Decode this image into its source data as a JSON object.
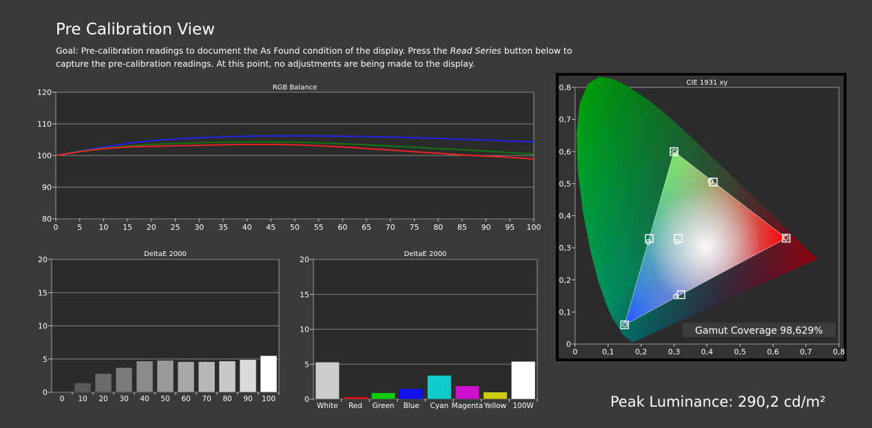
{
  "header": {
    "title": "Pre Calibration View",
    "goal_prefix": "Goal: Pre-calibration readings to document the As Found condition of the display. Press the ",
    "goal_em": "Read Series",
    "goal_suffix": " button below to capture the pre-calibration readings. At this point, no adjustments are being made to the display."
  },
  "footer": {
    "peak_luminance": "Peak Luminance: 290,2 cd/m²"
  },
  "colors": {
    "background": "#3a3a3a",
    "plot_bg": "#2b2b2b",
    "grid": "#888888"
  },
  "chart_data": [
    {
      "id": "rgb_balance",
      "type": "line",
      "title": "RGB Balance",
      "x": [
        0,
        5,
        10,
        15,
        20,
        25,
        30,
        35,
        40,
        45,
        50,
        55,
        60,
        65,
        70,
        75,
        80,
        85,
        90,
        95,
        100
      ],
      "x_ticks": [
        "0",
        "5",
        "10",
        "15",
        "20",
        "25",
        "30",
        "35",
        "40",
        "45",
        "50",
        "55",
        "60",
        "65",
        "70",
        "75",
        "80",
        "85",
        "90",
        "95",
        "100"
      ],
      "ylim": [
        80,
        120
      ],
      "y_ticks": [
        "80",
        "90",
        "100",
        "110",
        "120"
      ],
      "series": [
        {
          "color": "#2222ee",
          "values": [
            100,
            101.5,
            102.7,
            103.8,
            104.7,
            105.2,
            105.6,
            105.9,
            106.1,
            106.2,
            106.2,
            106.2,
            106.1,
            106.0,
            105.8,
            105.6,
            105.4,
            105.1,
            104.9,
            104.6,
            104.3
          ]
        },
        {
          "color": "#117711",
          "values": [
            100,
            101.4,
            102.3,
            103.0,
            103.5,
            103.8,
            104.0,
            104.2,
            104.3,
            104.3,
            104.2,
            104.0,
            103.7,
            103.4,
            103.0,
            102.6,
            102.2,
            101.8,
            101.4,
            100.9,
            100.4
          ]
        },
        {
          "color": "#ee2222",
          "values": [
            100,
            101.2,
            102.2,
            102.7,
            102.9,
            103.1,
            103.2,
            103.4,
            103.5,
            103.5,
            103.4,
            103.1,
            102.7,
            102.2,
            101.7,
            101.2,
            100.7,
            100.2,
            99.8,
            99.4,
            98.9
          ]
        }
      ]
    },
    {
      "id": "deltae_gray",
      "type": "bar",
      "title": "DeltaE 2000",
      "categories": [
        "0",
        "10",
        "20",
        "30",
        "40",
        "50",
        "60",
        "70",
        "80",
        "90",
        "100"
      ],
      "values": [
        0,
        1.4,
        2.8,
        3.7,
        4.7,
        4.8,
        4.6,
        4.6,
        4.7,
        4.9,
        5.5
      ],
      "colors": [
        "#3a3a3a",
        "#5a5a5a",
        "#6a6a6a",
        "#7a7a7a",
        "#8a8a8a",
        "#999999",
        "#a8a8a8",
        "#b8b8b8",
        "#c8c8c8",
        "#dcdcdc",
        "#ffffff"
      ],
      "ylim": [
        0,
        20
      ],
      "y_ticks": [
        "0",
        "5",
        "10",
        "15",
        "20"
      ]
    },
    {
      "id": "deltae_colors",
      "type": "bar",
      "title": "DeltaE 2000",
      "categories": [
        "White",
        "Red",
        "Green",
        "Blue",
        "Cyan",
        "Magenta",
        "Yellow",
        "100W"
      ],
      "values": [
        5.3,
        0.3,
        0.9,
        1.5,
        3.4,
        1.9,
        1.0,
        5.4
      ],
      "colors": [
        "#cccccc",
        "#ee1111",
        "#11cc11",
        "#1111ee",
        "#11cccc",
        "#cc11cc",
        "#cccc11",
        "#ffffff"
      ],
      "ylim": [
        0,
        20
      ],
      "y_ticks": [
        "0",
        "5",
        "10",
        "15",
        "20"
      ]
    },
    {
      "id": "cie",
      "type": "scatter",
      "title": "CIE 1931 xy",
      "x_ticks": [
        "0",
        "0,1",
        "0,2",
        "0,3",
        "0,4",
        "0,5",
        "0,6",
        "0,7",
        "0,8"
      ],
      "y_ticks": [
        "0",
        "0,1",
        "0,2",
        "0,3",
        "0,4",
        "0,5",
        "0,6",
        "0,7",
        "0,8"
      ],
      "xlim": [
        0,
        0.8
      ],
      "ylim": [
        0,
        0.8
      ],
      "targets": [
        {
          "name": "Red",
          "x": 0.64,
          "y": 0.33
        },
        {
          "name": "Green",
          "x": 0.3,
          "y": 0.6
        },
        {
          "name": "Blue",
          "x": 0.15,
          "y": 0.06
        },
        {
          "name": "White",
          "x": 0.3127,
          "y": 0.329
        },
        {
          "name": "Cyan",
          "x": 0.225,
          "y": 0.329
        },
        {
          "name": "Magenta",
          "x": 0.321,
          "y": 0.154
        },
        {
          "name": "Yellow",
          "x": 0.419,
          "y": 0.505
        }
      ],
      "measured": [
        {
          "x": 0.639,
          "y": 0.331
        },
        {
          "x": 0.301,
          "y": 0.599
        },
        {
          "x": 0.151,
          "y": 0.061
        },
        {
          "x": 0.308,
          "y": 0.318
        },
        {
          "x": 0.222,
          "y": 0.318
        },
        {
          "x": 0.306,
          "y": 0.148
        },
        {
          "x": 0.411,
          "y": 0.507
        }
      ],
      "gamut_coverage": "Gamut Coverage 98,629%"
    }
  ]
}
